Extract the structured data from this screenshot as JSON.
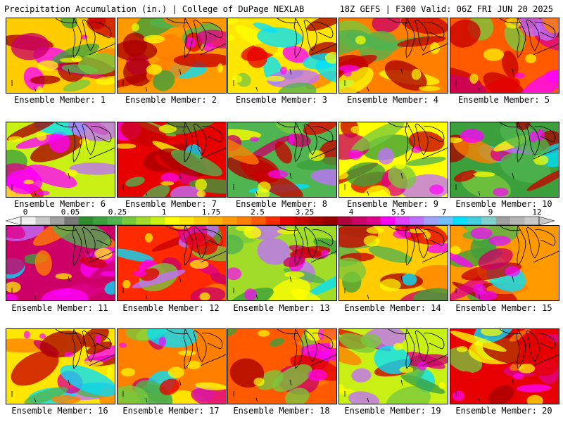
{
  "header": {
    "left_title": "Precipitation Accumulation (in.) | College of DuPage NEXLAB",
    "right_title": "18Z GEFS | F300 Valid: 06Z FRI JUN 20 2025"
  },
  "panels": [
    {
      "label": "Ensemble Member: 1"
    },
    {
      "label": "Ensemble Member: 2"
    },
    {
      "label": "Ensemble Member: 3"
    },
    {
      "label": "Ensemble Member: 4"
    },
    {
      "label": "Ensemble Member: 5"
    },
    {
      "label": "Ensemble Member: 6"
    },
    {
      "label": "Ensemble Member: 7"
    },
    {
      "label": "Ensemble Member: 8"
    },
    {
      "label": "Ensemble Member: 9"
    },
    {
      "label": "Ensemble Member: 10"
    },
    {
      "label": "Ensemble Member: 11"
    },
    {
      "label": "Ensemble Member: 12"
    },
    {
      "label": "Ensemble Member: 13"
    },
    {
      "label": "Ensemble Member: 14"
    },
    {
      "label": "Ensemble Member: 15"
    },
    {
      "label": "Ensemble Member: 16"
    },
    {
      "label": "Ensemble Member: 17"
    },
    {
      "label": "Ensemble Member: 18"
    },
    {
      "label": "Ensemble Member: 19"
    },
    {
      "label": "Ensemble Member: 20"
    }
  ],
  "colorbar": {
    "labels": [
      "0",
      "0.05",
      "0.25",
      "1",
      "1.75",
      "2.5",
      "3.25",
      "4",
      "5.5",
      "7",
      "9",
      "12"
    ],
    "colors": [
      "#f0f0f0",
      "#c8c8c8",
      "#a0a0a0",
      "#787878",
      "#2e8b2e",
      "#3ca03c",
      "#50b450",
      "#78c83c",
      "#a0dc28",
      "#c8f014",
      "#ffff00",
      "#ffe600",
      "#ffcc00",
      "#ffb300",
      "#ff9900",
      "#ff7f00",
      "#ff5a00",
      "#ff2a00",
      "#e60000",
      "#c80000",
      "#aa0000",
      "#960000",
      "#b4003c",
      "#cc0066",
      "#e0008c",
      "#ff00ff",
      "#e040ff",
      "#c070ff",
      "#a0a0ff",
      "#70c0ff",
      "#00e0ff",
      "#40d0e0",
      "#80d0d0",
      "#a0a0a0",
      "#b4b4b4",
      "#c8c8c8"
    ]
  }
}
